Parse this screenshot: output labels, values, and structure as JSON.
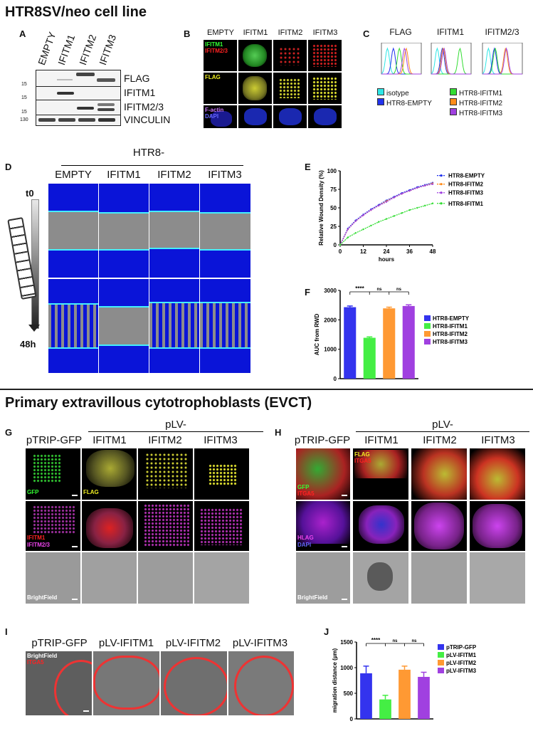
{
  "section1_title": "HTR8SV/neo cell line",
  "section2_title": "Primary extravillous cytotrophoblasts (EVCT)",
  "panelA": {
    "label": "A",
    "lanes": [
      "EMPTY",
      "IFITM1",
      "IFITM2",
      "IFITM3"
    ],
    "blots": [
      "FLAG",
      "IFITM1",
      "IFITM2/3",
      "VINCULIN"
    ],
    "mw": [
      "15",
      "15",
      "15",
      "130"
    ]
  },
  "panelB": {
    "label": "B",
    "cols": [
      "EMPTY",
      "IFITM1",
      "IFITM2",
      "IFITM3"
    ],
    "row1_labels": [
      "IFITM1",
      "IFITM2/3"
    ],
    "row2_label": "FLAG",
    "row3_labels": [
      "F-actin",
      "DAPI"
    ]
  },
  "panelC": {
    "label": "C",
    "titles": [
      "FLAG",
      "IFITM1",
      "IFITM2/3"
    ],
    "legend": [
      "isotype",
      "HTR8-EMPTY",
      "HTR8-IFITM1",
      "HTR8-IFITM2",
      "HTR8-IFITM3"
    ],
    "colors": [
      "#2ee6e6",
      "#2233ee",
      "#33dd33",
      "#ff8c1a",
      "#a040e0"
    ]
  },
  "panelD": {
    "label": "D",
    "header": "HTR8-",
    "cols": [
      "EMPTY",
      "IFITM1",
      "IFITM2",
      "IFITM3"
    ],
    "t0": "t0",
    "t48": "48h"
  },
  "panelE": {
    "label": "E",
    "ylabel": "Relative Wound Density (%)",
    "xlabel": "hours",
    "legend": [
      "HTR8-EMPTY",
      "HTR8-IFITM2",
      "HTR8-IFITM3",
      "HTR8-IFITM1"
    ]
  },
  "panelF": {
    "label": "F",
    "ylabel": "AUC from RWD",
    "sig": [
      "****",
      "ns",
      "ns"
    ],
    "legend": [
      "HTR8-EMPTY",
      "HTR8-IFITM1",
      "HTR8-IFITM2",
      "HTR8-IFITM3"
    ]
  },
  "panelG": {
    "label": "G",
    "first": "pTRIP-GFP",
    "group": "pLV-",
    "cols": [
      "IFITM1",
      "IFITM2",
      "IFITM3"
    ],
    "labels": {
      "gfp": "GFP",
      "flag": "FLAG",
      "ifitm1": "IFITM1",
      "ifitm23": "IFITM2/3",
      "bf": "BrightField"
    }
  },
  "panelH": {
    "label": "H",
    "first": "pTRIP-GFP",
    "group": "pLV-",
    "cols": [
      "IFITM1",
      "IFITM2",
      "IFITM3"
    ],
    "labels": {
      "gfp": "GFP",
      "itga5": "ITGA5",
      "flag": "FLAG",
      "hlag": "HLAG",
      "dapi": "DAPI",
      "bf": "BrightField"
    }
  },
  "panelI": {
    "label": "I",
    "cols": [
      "pTRIP-GFP",
      "pLV-IFITM1",
      "pLV-IFITM2",
      "pLV-IFITM3"
    ],
    "overlay": [
      "BrightField",
      "ITGA5"
    ]
  },
  "panelJ": {
    "label": "J",
    "ylabel": "migration distance (µm)",
    "sig": [
      "****",
      "ns",
      "ns"
    ],
    "legend": [
      "pTRIP-GFP",
      "pLV-IFITM1",
      "pLV-IFITM2",
      "pLV-IFITM3"
    ]
  },
  "chart_data": [
    {
      "type": "line",
      "panel": "E",
      "xlabel": "hours",
      "ylabel": "Relative Wound Density (%)",
      "xlim": [
        0,
        48
      ],
      "ylim": [
        0,
        100
      ],
      "xticks": [
        0,
        12,
        24,
        36,
        48
      ],
      "yticks": [
        0,
        25,
        50,
        75,
        100
      ],
      "x": [
        0,
        4,
        8,
        12,
        16,
        20,
        24,
        28,
        32,
        36,
        40,
        44,
        48
      ],
      "series": [
        {
          "name": "HTR8-EMPTY",
          "color": "#2233ee",
          "values": [
            0,
            22,
            33,
            41,
            48,
            54,
            60,
            65,
            70,
            74,
            78,
            81,
            84
          ]
        },
        {
          "name": "HTR8-IFITM2",
          "color": "#ff8c1a",
          "values": [
            0,
            21,
            32,
            40,
            47,
            53,
            59,
            64,
            69,
            73,
            77,
            80,
            83
          ]
        },
        {
          "name": "HTR8-IFITM3",
          "color": "#a040e0",
          "values": [
            0,
            21,
            32,
            40,
            47,
            53,
            58,
            64,
            69,
            73,
            77,
            80,
            82
          ]
        },
        {
          "name": "HTR8-IFITM1",
          "color": "#33dd33",
          "values": [
            0,
            10,
            16,
            21,
            26,
            31,
            35,
            39,
            43,
            47,
            50,
            53,
            56
          ]
        }
      ]
    },
    {
      "type": "bar",
      "panel": "F",
      "ylabel": "AUC from RWD",
      "ylim": [
        0,
        3000
      ],
      "yticks": [
        0,
        1000,
        2000,
        3000
      ],
      "categories": [
        "HTR8-EMPTY",
        "HTR8-IFITM1",
        "HTR8-IFITM2",
        "HTR8-IFITM3"
      ],
      "values": [
        2430,
        1390,
        2390,
        2470
      ],
      "errors": [
        40,
        30,
        40,
        40
      ],
      "colors": [
        "#3333ee",
        "#44ee44",
        "#ff9933",
        "#a040e0"
      ]
    },
    {
      "type": "bar",
      "panel": "J",
      "ylabel": "migration distance (µm)",
      "ylim": [
        0,
        1500
      ],
      "yticks": [
        0,
        500,
        1000,
        1500
      ],
      "categories": [
        "pTRIP-GFP",
        "pLV-IFITM1",
        "pLV-IFITM2",
        "pLV-IFITM3"
      ],
      "values": [
        890,
        380,
        960,
        820
      ],
      "errors": [
        140,
        80,
        70,
        90
      ],
      "colors": [
        "#3333ee",
        "#44ee44",
        "#ff9933",
        "#a040e0"
      ]
    }
  ]
}
